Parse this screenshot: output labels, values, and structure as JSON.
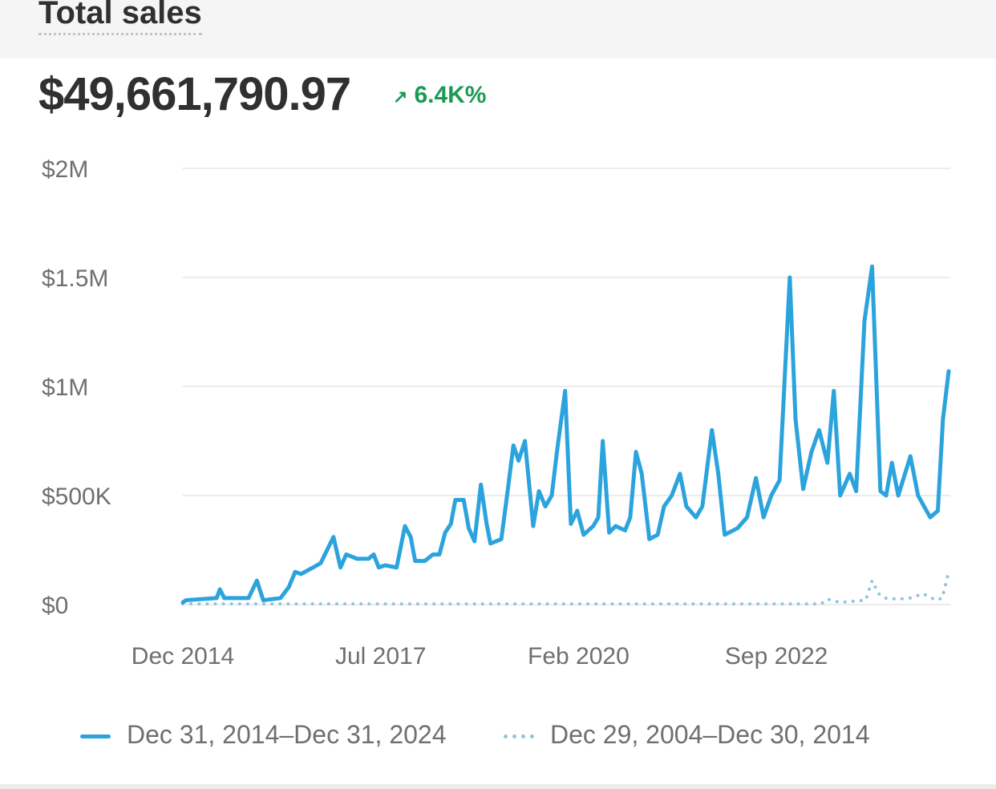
{
  "header": {
    "title": "Total sales"
  },
  "summary": {
    "total": "$49,661,790.97",
    "change": "6.4K%",
    "change_icon": "arrow-up-right-icon"
  },
  "colors": {
    "primary": "#2ba3dc",
    "comparison": "#8fc6dc",
    "positive": "#1a9a55"
  },
  "chart_data": {
    "type": "line",
    "title": "Total sales",
    "x_unit": "months since Dec 2014",
    "xlim": [
      0,
      120
    ],
    "ylim": [
      0,
      2000000
    ],
    "grid": true,
    "y_ticks": [
      {
        "value": 0,
        "label": "$0"
      },
      {
        "value": 500000,
        "label": "$500K"
      },
      {
        "value": 1000000,
        "label": "$1M"
      },
      {
        "value": 1500000,
        "label": "$1.5M"
      },
      {
        "value": 2000000,
        "label": "$2M"
      }
    ],
    "x_ticks": [
      {
        "value": 0,
        "label": "Dec 2014"
      },
      {
        "value": 31,
        "label": "Jul 2017"
      },
      {
        "value": 62,
        "label": "Feb 2020"
      },
      {
        "value": 93,
        "label": "Sep 2022"
      }
    ],
    "legend_position": "bottom",
    "series": [
      {
        "name": "Dec 31, 2014–Dec 31, 2024",
        "style": "solid",
        "x": [
          0,
          0.5,
          5.3,
          5.8,
          6.5,
          10.3,
          11.6,
          12.6,
          15.3,
          16.6,
          17.6,
          18.5,
          20.4,
          21.6,
          22.6,
          23.6,
          24.7,
          25.6,
          27.3,
          29.1,
          29.9,
          30.7,
          31.7,
          33.5,
          34.8,
          35.7,
          36.4,
          37.9,
          39.2,
          40.2,
          41.1,
          42,
          42.7,
          44,
          44.8,
          45.7,
          46.7,
          47.6,
          48.2,
          49.9,
          50.8,
          51.8,
          52.6,
          53.6,
          54.9,
          55.8,
          56.8,
          57.8,
          58.7,
          59.9,
          60.8,
          61.8,
          62.8,
          64.3,
          65.1,
          65.8,
          66.8,
          67.8,
          69.3,
          70.1,
          71,
          71.9,
          73.1,
          74.4,
          75.4,
          76.6,
          77.9,
          78.9,
          80.4,
          81.4,
          82.9,
          83.9,
          84.9,
          86.9,
          88.4,
          89.8,
          91,
          92.2,
          93.5,
          95.1,
          96,
          97.2,
          98.5,
          99.7,
          101,
          102,
          103,
          104.5,
          105.5,
          106.8,
          108,
          109.3,
          110.2,
          111.1,
          112.1,
          114,
          115.2,
          117.1,
          118.3,
          119.1,
          120
        ],
        "values": [
          10000,
          20000,
          30000,
          70000,
          30000,
          30000,
          110000,
          20000,
          30000,
          80000,
          150000,
          140000,
          170000,
          190000,
          250000,
          310000,
          170000,
          230000,
          210000,
          210000,
          230000,
          170000,
          180000,
          170000,
          360000,
          310000,
          200000,
          200000,
          230000,
          230000,
          330000,
          370000,
          480000,
          480000,
          350000,
          290000,
          550000,
          370000,
          280000,
          300000,
          500000,
          730000,
          660000,
          750000,
          360000,
          520000,
          450000,
          500000,
          720000,
          980000,
          370000,
          430000,
          320000,
          360000,
          400000,
          750000,
          330000,
          360000,
          340000,
          400000,
          700000,
          600000,
          300000,
          320000,
          450000,
          500000,
          600000,
          450000,
          400000,
          450000,
          800000,
          600000,
          320000,
          350000,
          400000,
          580000,
          400000,
          500000,
          570000,
          1500000,
          850000,
          530000,
          700000,
          800000,
          650000,
          980000,
          500000,
          600000,
          520000,
          1300000,
          1550000,
          520000,
          500000,
          650000,
          500000,
          680000,
          500000,
          400000,
          430000,
          850000,
          1070000
        ]
      },
      {
        "name": "Dec 29, 2004–Dec 30, 2014",
        "style": "dotted",
        "x": [
          0,
          20,
          40,
          60,
          80,
          100,
          101,
          103,
          105,
          107,
          108,
          109,
          110,
          112,
          114,
          116,
          118,
          119,
          120
        ],
        "values": [
          3000,
          3000,
          3000,
          3000,
          3000,
          3000,
          25000,
          10000,
          15000,
          20000,
          110000,
          50000,
          30000,
          25000,
          30000,
          50000,
          20000,
          30000,
          150000
        ]
      }
    ]
  }
}
